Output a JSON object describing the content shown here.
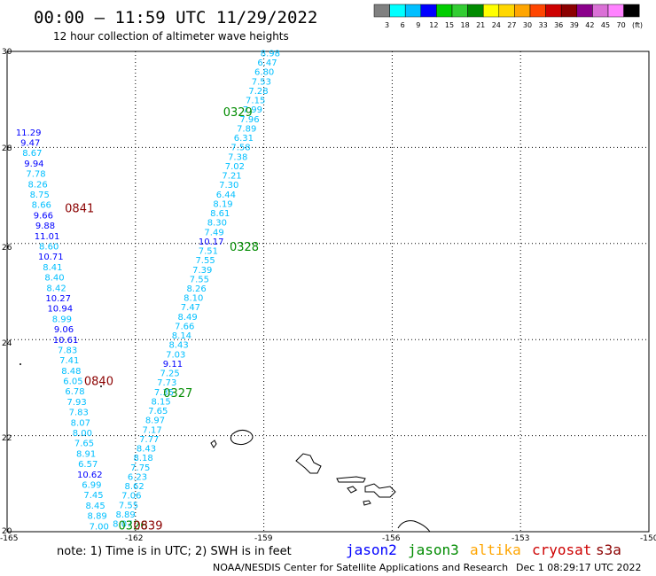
{
  "header": {
    "title": "00:00 – 11:59 UTC 11/29/2022",
    "subtitle": "12 hour collection of altimeter wave heights"
  },
  "legend": {
    "unit": "(ft)",
    "bins": [
      {
        "label": "3",
        "color": "#808080"
      },
      {
        "label": "6",
        "color": "#00ffff"
      },
      {
        "label": "9",
        "color": "#00bfff"
      },
      {
        "label": "12",
        "color": "#0000ff"
      },
      {
        "label": "15",
        "color": "#00cd00"
      },
      {
        "label": "18",
        "color": "#32cd32"
      },
      {
        "label": "21",
        "color": "#008b00"
      },
      {
        "label": "24",
        "color": "#ffff00"
      },
      {
        "label": "27",
        "color": "#ffd700"
      },
      {
        "label": "30",
        "color": "#ffa500"
      },
      {
        "label": "33",
        "color": "#ff4500"
      },
      {
        "label": "36",
        "color": "#cd0000"
      },
      {
        "label": "39",
        "color": "#8b0000"
      },
      {
        "label": "42",
        "color": "#8b008b"
      },
      {
        "label": "45",
        "color": "#da70d6"
      },
      {
        "label": "70",
        "color": "#ff82ff"
      },
      {
        "label": "",
        "color": "#000000"
      }
    ]
  },
  "axes": {
    "lon_labels": [
      "-165",
      "-162",
      "-159",
      "-156",
      "-153",
      "-150"
    ],
    "lat_labels": [
      "30",
      "28",
      "26",
      "24",
      "22",
      "20"
    ]
  },
  "passes": [
    {
      "time_label": "0329",
      "label_color": "#008b00",
      "label_lat": 28.65,
      "label_lon": -159.95,
      "lon_start": -158.85,
      "lon_end": -162.3,
      "lat_start": 29.9,
      "lat_end": 20.1,
      "samples": [
        {
          "value": "8.98",
          "color": "#00bfff"
        },
        {
          "value": "6.47",
          "color": "#00bfff"
        },
        {
          "value": "6.80",
          "color": "#00bfff"
        },
        {
          "value": "7.53",
          "color": "#00bfff"
        },
        {
          "value": "7.28",
          "color": "#00bfff"
        },
        {
          "value": "7.15",
          "color": "#00bfff"
        },
        {
          "value": "7.99",
          "color": "#00bfff"
        },
        {
          "value": "7.96",
          "color": "#00bfff"
        },
        {
          "value": "7.89",
          "color": "#00bfff"
        },
        {
          "value": "6.31",
          "color": "#00bfff"
        },
        {
          "value": "7.58",
          "color": "#00bfff"
        },
        {
          "value": "7.38",
          "color": "#00bfff"
        },
        {
          "value": "7.02",
          "color": "#00bfff"
        },
        {
          "value": "7.21",
          "color": "#00bfff"
        },
        {
          "value": "7.30",
          "color": "#00bfff"
        },
        {
          "value": "6.44",
          "color": "#00bfff"
        },
        {
          "value": "8.19",
          "color": "#00bfff"
        },
        {
          "value": "8.61",
          "color": "#00bfff"
        },
        {
          "value": "8.30",
          "color": "#00bfff"
        },
        {
          "value": "7.49",
          "color": "#00bfff"
        },
        {
          "value": "10.17",
          "color": "#0000ff"
        },
        {
          "value": "7.51",
          "color": "#00bfff"
        },
        {
          "value": "7.55",
          "color": "#00bfff"
        },
        {
          "value": "7.39",
          "color": "#00bfff"
        },
        {
          "value": "7.55",
          "color": "#00bfff"
        },
        {
          "value": "8.26",
          "color": "#00bfff"
        },
        {
          "value": "8.10",
          "color": "#00bfff"
        },
        {
          "value": "7.47",
          "color": "#00bfff"
        },
        {
          "value": "8.49",
          "color": "#00bfff"
        },
        {
          "value": "7.66",
          "color": "#00bfff"
        },
        {
          "value": "8.14",
          "color": "#00bfff"
        },
        {
          "value": "8.43",
          "color": "#00bfff"
        },
        {
          "value": "7.03",
          "color": "#00bfff"
        },
        {
          "value": "9.11",
          "color": "#0000ff"
        },
        {
          "value": "7.25",
          "color": "#00bfff"
        },
        {
          "value": "7.73",
          "color": "#00bfff"
        },
        {
          "value": "7.35",
          "color": "#00bfff"
        },
        {
          "value": "8.15",
          "color": "#00bfff"
        },
        {
          "value": "7.65",
          "color": "#00bfff"
        },
        {
          "value": "8.97",
          "color": "#00bfff"
        },
        {
          "value": "7.17",
          "color": "#00bfff"
        },
        {
          "value": "7.77",
          "color": "#00bfff"
        },
        {
          "value": "8.43",
          "color": "#00bfff"
        },
        {
          "value": "8.18",
          "color": "#00bfff"
        },
        {
          "value": "7.75",
          "color": "#00bfff"
        },
        {
          "value": "6.23",
          "color": "#00bfff"
        },
        {
          "value": "8.62",
          "color": "#00bfff"
        },
        {
          "value": "7.06",
          "color": "#00bfff"
        },
        {
          "value": "7.55",
          "color": "#00bfff"
        },
        {
          "value": "8.89",
          "color": "#00bfff"
        },
        {
          "value": "8.07",
          "color": "#00bfff"
        }
      ]
    },
    {
      "time_label": "0841",
      "label_color": "#8b0000",
      "label_lat": 26.65,
      "label_lon": -163.65,
      "lon_start": -164.5,
      "lon_end": -162.85,
      "lat_start": 28.25,
      "lat_end": 20.05,
      "samples": [
        {
          "value": "11.29",
          "color": "#0000ff"
        },
        {
          "value": "9.47",
          "color": "#0000ff"
        },
        {
          "value": "8.67",
          "color": "#00bfff"
        },
        {
          "value": "9.94",
          "color": "#0000ff"
        },
        {
          "value": "7.78",
          "color": "#00bfff"
        },
        {
          "value": "8.26",
          "color": "#00bfff"
        },
        {
          "value": "8.75",
          "color": "#00bfff"
        },
        {
          "value": "8.66",
          "color": "#00bfff"
        },
        {
          "value": "9.66",
          "color": "#0000ff"
        },
        {
          "value": "9.88",
          "color": "#0000ff"
        },
        {
          "value": "11.01",
          "color": "#0000ff"
        },
        {
          "value": "8.60",
          "color": "#00bfff"
        },
        {
          "value": "10.71",
          "color": "#0000ff"
        },
        {
          "value": "8.41",
          "color": "#00bfff"
        },
        {
          "value": "8.40",
          "color": "#00bfff"
        },
        {
          "value": "8.42",
          "color": "#00bfff"
        },
        {
          "value": "10.27",
          "color": "#0000ff"
        },
        {
          "value": "10.94",
          "color": "#0000ff"
        },
        {
          "value": "8.99",
          "color": "#00bfff"
        },
        {
          "value": "9.06",
          "color": "#0000ff"
        },
        {
          "value": "10.61",
          "color": "#0000ff"
        },
        {
          "value": "7.83",
          "color": "#00bfff"
        },
        {
          "value": "7.41",
          "color": "#00bfff"
        },
        {
          "value": "8.48",
          "color": "#00bfff"
        },
        {
          "value": "6.05",
          "color": "#00bfff"
        },
        {
          "value": "6.78",
          "color": "#00bfff"
        },
        {
          "value": "7.93",
          "color": "#00bfff"
        },
        {
          "value": "7.83",
          "color": "#00bfff"
        },
        {
          "value": "8.07",
          "color": "#00bfff"
        },
        {
          "value": "8.00",
          "color": "#00bfff"
        },
        {
          "value": "7.65",
          "color": "#00bfff"
        },
        {
          "value": "8.91",
          "color": "#00bfff"
        },
        {
          "value": "6.57",
          "color": "#00bfff"
        },
        {
          "value": "10.62",
          "color": "#0000ff"
        },
        {
          "value": "6.99",
          "color": "#00bfff"
        },
        {
          "value": "7.45",
          "color": "#00bfff"
        },
        {
          "value": "8.45",
          "color": "#00bfff"
        },
        {
          "value": "8.89",
          "color": "#00bfff"
        },
        {
          "value": "7.00",
          "color": "#00bfff"
        }
      ]
    }
  ],
  "extra_time_labels": [
    {
      "text": "0328",
      "color": "#008b00",
      "lat": 25.85,
      "lon": -159.8
    },
    {
      "text": "0327",
      "color": "#008b00",
      "lat": 22.8,
      "lon": -161.35
    },
    {
      "text": "0840",
      "color": "#8b0000",
      "lat": 23.05,
      "lon": -163.2
    },
    {
      "text": "0326",
      "color": "#008b00",
      "lat": 20.05,
      "lon": -162.4
    },
    {
      "text": "0839",
      "color": "#8b0000",
      "lat": 20.05,
      "lon": -162.05
    }
  ],
  "footer": {
    "note": "note:  1) Time is in UTC;  2) SWH is in feet",
    "satellites": [
      {
        "name": "jason2",
        "color": "#0000ff"
      },
      {
        "name": "jason3",
        "color": "#008b00"
      },
      {
        "name": "altika",
        "color": "#ffa500"
      },
      {
        "name": "cryosat",
        "color": "#cd0000"
      },
      {
        "name": "s3a",
        "color": "#8b0000"
      }
    ],
    "credit": "NOAA/NESDIS Center for Satellite Applications and Research",
    "timestamp": "Dec  1 08:29:17 UTC 2022"
  }
}
